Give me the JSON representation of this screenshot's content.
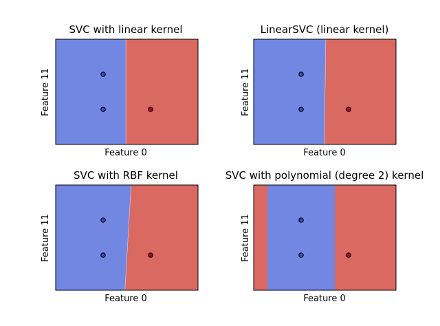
{
  "colors": {
    "class_a": "#7287e2",
    "class_b": "#d96961",
    "point_a": "#3b4cc0",
    "point_b": "#b40426",
    "edge": "#000000"
  },
  "chart_data": [
    {
      "type": "scatter",
      "title": "SVC with linear kernel",
      "xlabel": "Feature 0",
      "ylabel": "Feature 11",
      "xticks": false,
      "yticks": false,
      "xlim": [
        0,
        3
      ],
      "ylim": [
        0,
        3
      ],
      "regions": [
        {
          "class": "class_a",
          "boundary_top": 1.48,
          "boundary_bottom": 1.48,
          "side": "left"
        },
        {
          "class": "class_b",
          "side": "right"
        }
      ],
      "points": [
        {
          "x": 1.0,
          "y": 2.0,
          "class": "class_a"
        },
        {
          "x": 1.0,
          "y": 1.0,
          "class": "class_a"
        },
        {
          "x": 2.0,
          "y": 1.0,
          "class": "class_b"
        }
      ]
    },
    {
      "type": "scatter",
      "title": "LinearSVC (linear kernel)",
      "xlabel": "Feature 0",
      "ylabel": "Feature 11",
      "xticks": false,
      "yticks": false,
      "xlim": [
        0,
        3
      ],
      "ylim": [
        0,
        3
      ],
      "regions": [
        {
          "class": "class_a",
          "boundary_top": 1.52,
          "boundary_bottom": 1.49,
          "side": "left"
        },
        {
          "class": "class_b",
          "side": "right"
        }
      ],
      "points": [
        {
          "x": 1.0,
          "y": 2.0,
          "class": "class_a"
        },
        {
          "x": 1.0,
          "y": 1.0,
          "class": "class_a"
        },
        {
          "x": 2.0,
          "y": 1.0,
          "class": "class_b"
        }
      ]
    },
    {
      "type": "scatter",
      "title": "SVC with RBF kernel",
      "xlabel": "Feature 0",
      "ylabel": "Feature 11",
      "xticks": false,
      "yticks": false,
      "xlim": [
        0,
        3
      ],
      "ylim": [
        0,
        3
      ],
      "regions": [
        {
          "class": "class_a",
          "boundary_top": 1.59,
          "boundary_bottom": 1.46,
          "side": "left"
        },
        {
          "class": "class_b",
          "side": "right"
        }
      ],
      "points": [
        {
          "x": 1.0,
          "y": 2.0,
          "class": "class_a"
        },
        {
          "x": 1.0,
          "y": 1.0,
          "class": "class_a"
        },
        {
          "x": 2.0,
          "y": 1.0,
          "class": "class_b"
        }
      ]
    },
    {
      "type": "scatter",
      "title": "SVC with polynomial (degree 2) kernel",
      "xlabel": "Feature 0",
      "ylabel": "Feature 11",
      "xticks": false,
      "yticks": false,
      "xlim": [
        0,
        3
      ],
      "ylim": [
        0,
        3
      ],
      "bands": [
        {
          "class": "class_b",
          "from": 0,
          "to": 0.29
        },
        {
          "class": "class_a",
          "from": 0.29,
          "to": 1.71
        },
        {
          "class": "class_b",
          "from": 1.71,
          "to": 3
        }
      ],
      "points": [
        {
          "x": 1.0,
          "y": 2.0,
          "class": "class_a"
        },
        {
          "x": 1.0,
          "y": 1.0,
          "class": "class_a"
        },
        {
          "x": 2.0,
          "y": 1.0,
          "class": "class_b"
        }
      ]
    }
  ]
}
